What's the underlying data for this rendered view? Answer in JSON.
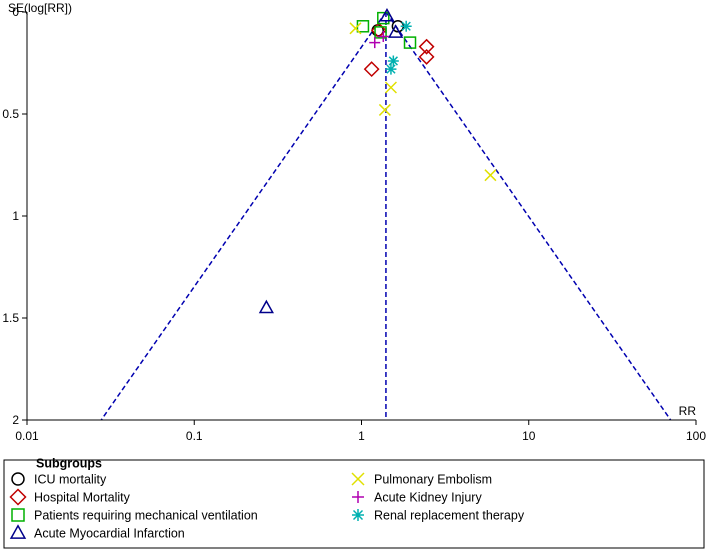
{
  "chart_data": {
    "type": "scatter",
    "subtype": "funnel-plot",
    "title": "",
    "xlabel": "RR",
    "ylabel": "SE(log[RR])",
    "x_scale": "log",
    "xlim": [
      0.01,
      100
    ],
    "ylim": [
      0,
      2
    ],
    "y_inverted": true,
    "x_ticks": [
      0.01,
      0.1,
      1,
      10,
      100
    ],
    "x_tick_labels": [
      "0.01",
      "0.1",
      "1",
      "10",
      "100"
    ],
    "y_ticks": [
      0,
      0.5,
      1,
      1.5,
      2
    ],
    "y_tick_labels": [
      "0",
      "0.5",
      "1",
      "1.5",
      "2"
    ],
    "pooled_rr": 1.4,
    "funnel_max_se": 2,
    "legend_title": "Subgroups",
    "series": [
      {
        "name": "ICU mortality",
        "marker": "circle",
        "color": "#000000",
        "points": [
          {
            "x": 1.25,
            "y": 0.09
          },
          {
            "x": 1.65,
            "y": 0.07
          }
        ]
      },
      {
        "name": "Hospital Mortality",
        "marker": "diamond",
        "color": "#c00000",
        "points": [
          {
            "x": 1.27,
            "y": 0.09
          },
          {
            "x": 1.15,
            "y": 0.28
          },
          {
            "x": 2.45,
            "y": 0.17
          },
          {
            "x": 2.45,
            "y": 0.22
          }
        ]
      },
      {
        "name": "Patients requiring mechanical ventilation",
        "marker": "square",
        "color": "#00b000",
        "points": [
          {
            "x": 1.35,
            "y": 0.03
          },
          {
            "x": 1.02,
            "y": 0.07
          },
          {
            "x": 1.95,
            "y": 0.15
          },
          {
            "x": 1.3,
            "y": 0.1
          }
        ]
      },
      {
        "name": "Acute Myocardial Infarction",
        "marker": "triangle",
        "color": "#00008b",
        "points": [
          {
            "x": 0.27,
            "y": 1.45
          },
          {
            "x": 1.6,
            "y": 0.1
          },
          {
            "x": 1.42,
            "y": 0.02
          }
        ]
      },
      {
        "name": "Pulmonary Embolism",
        "marker": "x",
        "color": "#e0e000",
        "points": [
          {
            "x": 0.92,
            "y": 0.08
          },
          {
            "x": 1.5,
            "y": 0.37
          },
          {
            "x": 1.38,
            "y": 0.48
          },
          {
            "x": 5.9,
            "y": 0.8
          }
        ]
      },
      {
        "name": "Acute Kidney Injury",
        "marker": "plus",
        "color": "#b000b0",
        "points": [
          {
            "x": 1.2,
            "y": 0.15
          },
          {
            "x": 1.35,
            "y": 0.12
          }
        ]
      },
      {
        "name": "Renal replacement therapy",
        "marker": "asterisk",
        "color": "#00b0b0",
        "points": [
          {
            "x": 1.85,
            "y": 0.07
          },
          {
            "x": 1.55,
            "y": 0.24
          },
          {
            "x": 1.5,
            "y": 0.28
          }
        ]
      }
    ],
    "legend_columns": [
      [
        "ICU mortality",
        "Hospital Mortality",
        "Patients requiring mechanical ventilation",
        "Acute Myocardial Infarction"
      ],
      [
        "Pulmonary Embolism",
        "Acute Kidney Injury",
        "Renal replacement therapy"
      ]
    ],
    "funnel_color": "#0000b0"
  }
}
